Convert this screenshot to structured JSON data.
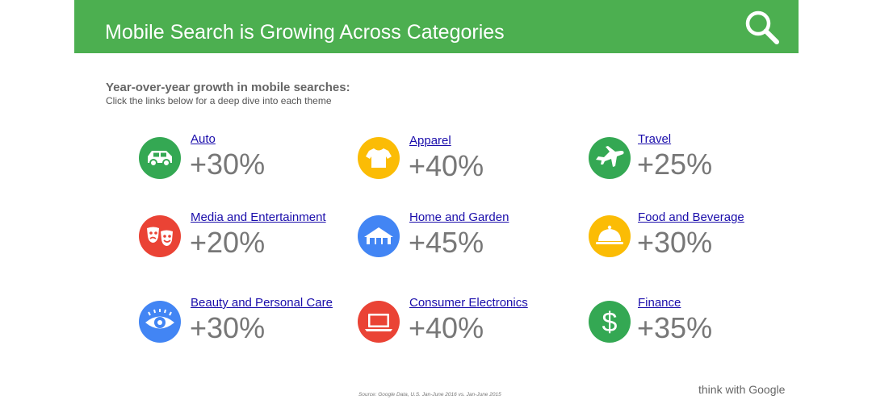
{
  "header": {
    "title": "Mobile Search is Growing Across Categories",
    "icon": "search-icon"
  },
  "subtitle": "Year-over-year growth in mobile searches:",
  "subnote": "Click the links below for a deep dive into each theme",
  "colors": {
    "header_bg": "#4caf50",
    "green": "#34a853",
    "yellow": "#fbbc05",
    "red": "#ea4335",
    "blue": "#4285f4",
    "link": "#1a0dab",
    "value_text": "#777777"
  },
  "categories": [
    {
      "label": "Auto",
      "value": "+30%",
      "icon": "car-icon",
      "color": "#34a853"
    },
    {
      "label": "Apparel",
      "value": "+40%",
      "icon": "tshirt-icon",
      "color": "#fbbc05"
    },
    {
      "label": "Travel",
      "value": "+25%",
      "icon": "airplane-icon",
      "color": "#34a853"
    },
    {
      "label": "Media and Entertainment",
      "value": "+20%",
      "icon": "theater-masks-icon",
      "color": "#ea4335"
    },
    {
      "label": "Home and Garden",
      "value": "+45%",
      "icon": "house-icon",
      "color": "#4285f4"
    },
    {
      "label": "Food and Beverage",
      "value": "+30%",
      "icon": "cloche-icon",
      "color": "#fbbc05"
    },
    {
      "label": "Beauty and Personal Care",
      "value": "+30%",
      "icon": "eye-icon",
      "color": "#4285f4"
    },
    {
      "label": "Consumer Electronics",
      "value": "+40%",
      "icon": "laptop-icon",
      "color": "#ea4335"
    },
    {
      "label": "Finance",
      "value": "+35%",
      "icon": "dollar-icon",
      "color": "#34a853"
    }
  ],
  "footer": {
    "source": "Source: Google Data, U.S. Jan-June 2016 vs. Jan-June 2015",
    "brand": "think with Google"
  }
}
